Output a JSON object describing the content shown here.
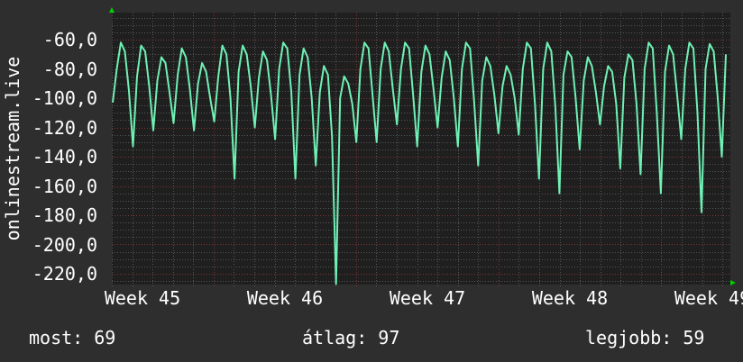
{
  "chart_data": {
    "type": "line",
    "ylabel": "onlinestream.live",
    "xlabel": "",
    "ylim": [
      -227.4,
      -41.5
    ],
    "yticks": [
      "-60,0",
      "-80,0",
      "-100,0",
      "-120,0",
      "-140,0",
      "-160,0",
      "-180,0",
      "-200,0",
      "-220,0"
    ],
    "ytick_values": [
      -60,
      -80,
      -100,
      -120,
      -140,
      -160,
      -180,
      -200,
      -220
    ],
    "xticks": [
      "Week 45",
      "Week 46",
      "Week 47",
      "Week 48",
      "Week 49"
    ],
    "grid": true,
    "colors": {
      "line": "#6ff0b4",
      "plot_bg": "#1f1f1f",
      "background": "#2e2e2e",
      "major_grid": "#7a3333",
      "minor_grid": "#555555",
      "arrow": "#00d000"
    },
    "series": [
      {
        "values": [
          -103,
          -80,
          -62,
          -68,
          -95,
          -133,
          -85,
          -64,
          -68,
          -92,
          -122,
          -88,
          -72,
          -76,
          -96,
          -117,
          -84,
          -66,
          -72,
          -94,
          -122,
          -90,
          -76,
          -82,
          -100,
          -116,
          -85,
          -64,
          -70,
          -100,
          -155,
          -82,
          -64,
          -70,
          -92,
          -120,
          -86,
          -68,
          -74,
          -98,
          -128,
          -80,
          -62,
          -66,
          -96,
          -155,
          -84,
          -66,
          -72,
          -100,
          -146,
          -96,
          -78,
          -84,
          -126,
          -227,
          -100,
          -85,
          -90,
          -104,
          -130,
          -80,
          -62,
          -66,
          -98,
          -130,
          -80,
          -62,
          -68,
          -94,
          -118,
          -80,
          -62,
          -66,
          -98,
          -133,
          -82,
          -64,
          -70,
          -94,
          -120,
          -86,
          -68,
          -74,
          -100,
          -133,
          -80,
          -62,
          -66,
          -102,
          -146,
          -88,
          -72,
          -78,
          -98,
          -124,
          -92,
          -78,
          -84,
          -100,
          -125,
          -80,
          -62,
          -66,
          -104,
          -155,
          -80,
          -62,
          -68,
          -106,
          -165,
          -84,
          -68,
          -72,
          -100,
          -135,
          -88,
          -72,
          -78,
          -96,
          -118,
          -92,
          -78,
          -82,
          -104,
          -148,
          -86,
          -70,
          -74,
          -104,
          -152,
          -80,
          -62,
          -66,
          -110,
          -165,
          -82,
          -64,
          -70,
          -98,
          -128,
          -80,
          -62,
          -66,
          -110,
          -178,
          -80,
          -63,
          -68,
          -100,
          -140,
          -70
        ]
      }
    ]
  },
  "legend": {
    "current": "most: 69",
    "average": "átlag: 97",
    "best": "legjobb: 59"
  }
}
